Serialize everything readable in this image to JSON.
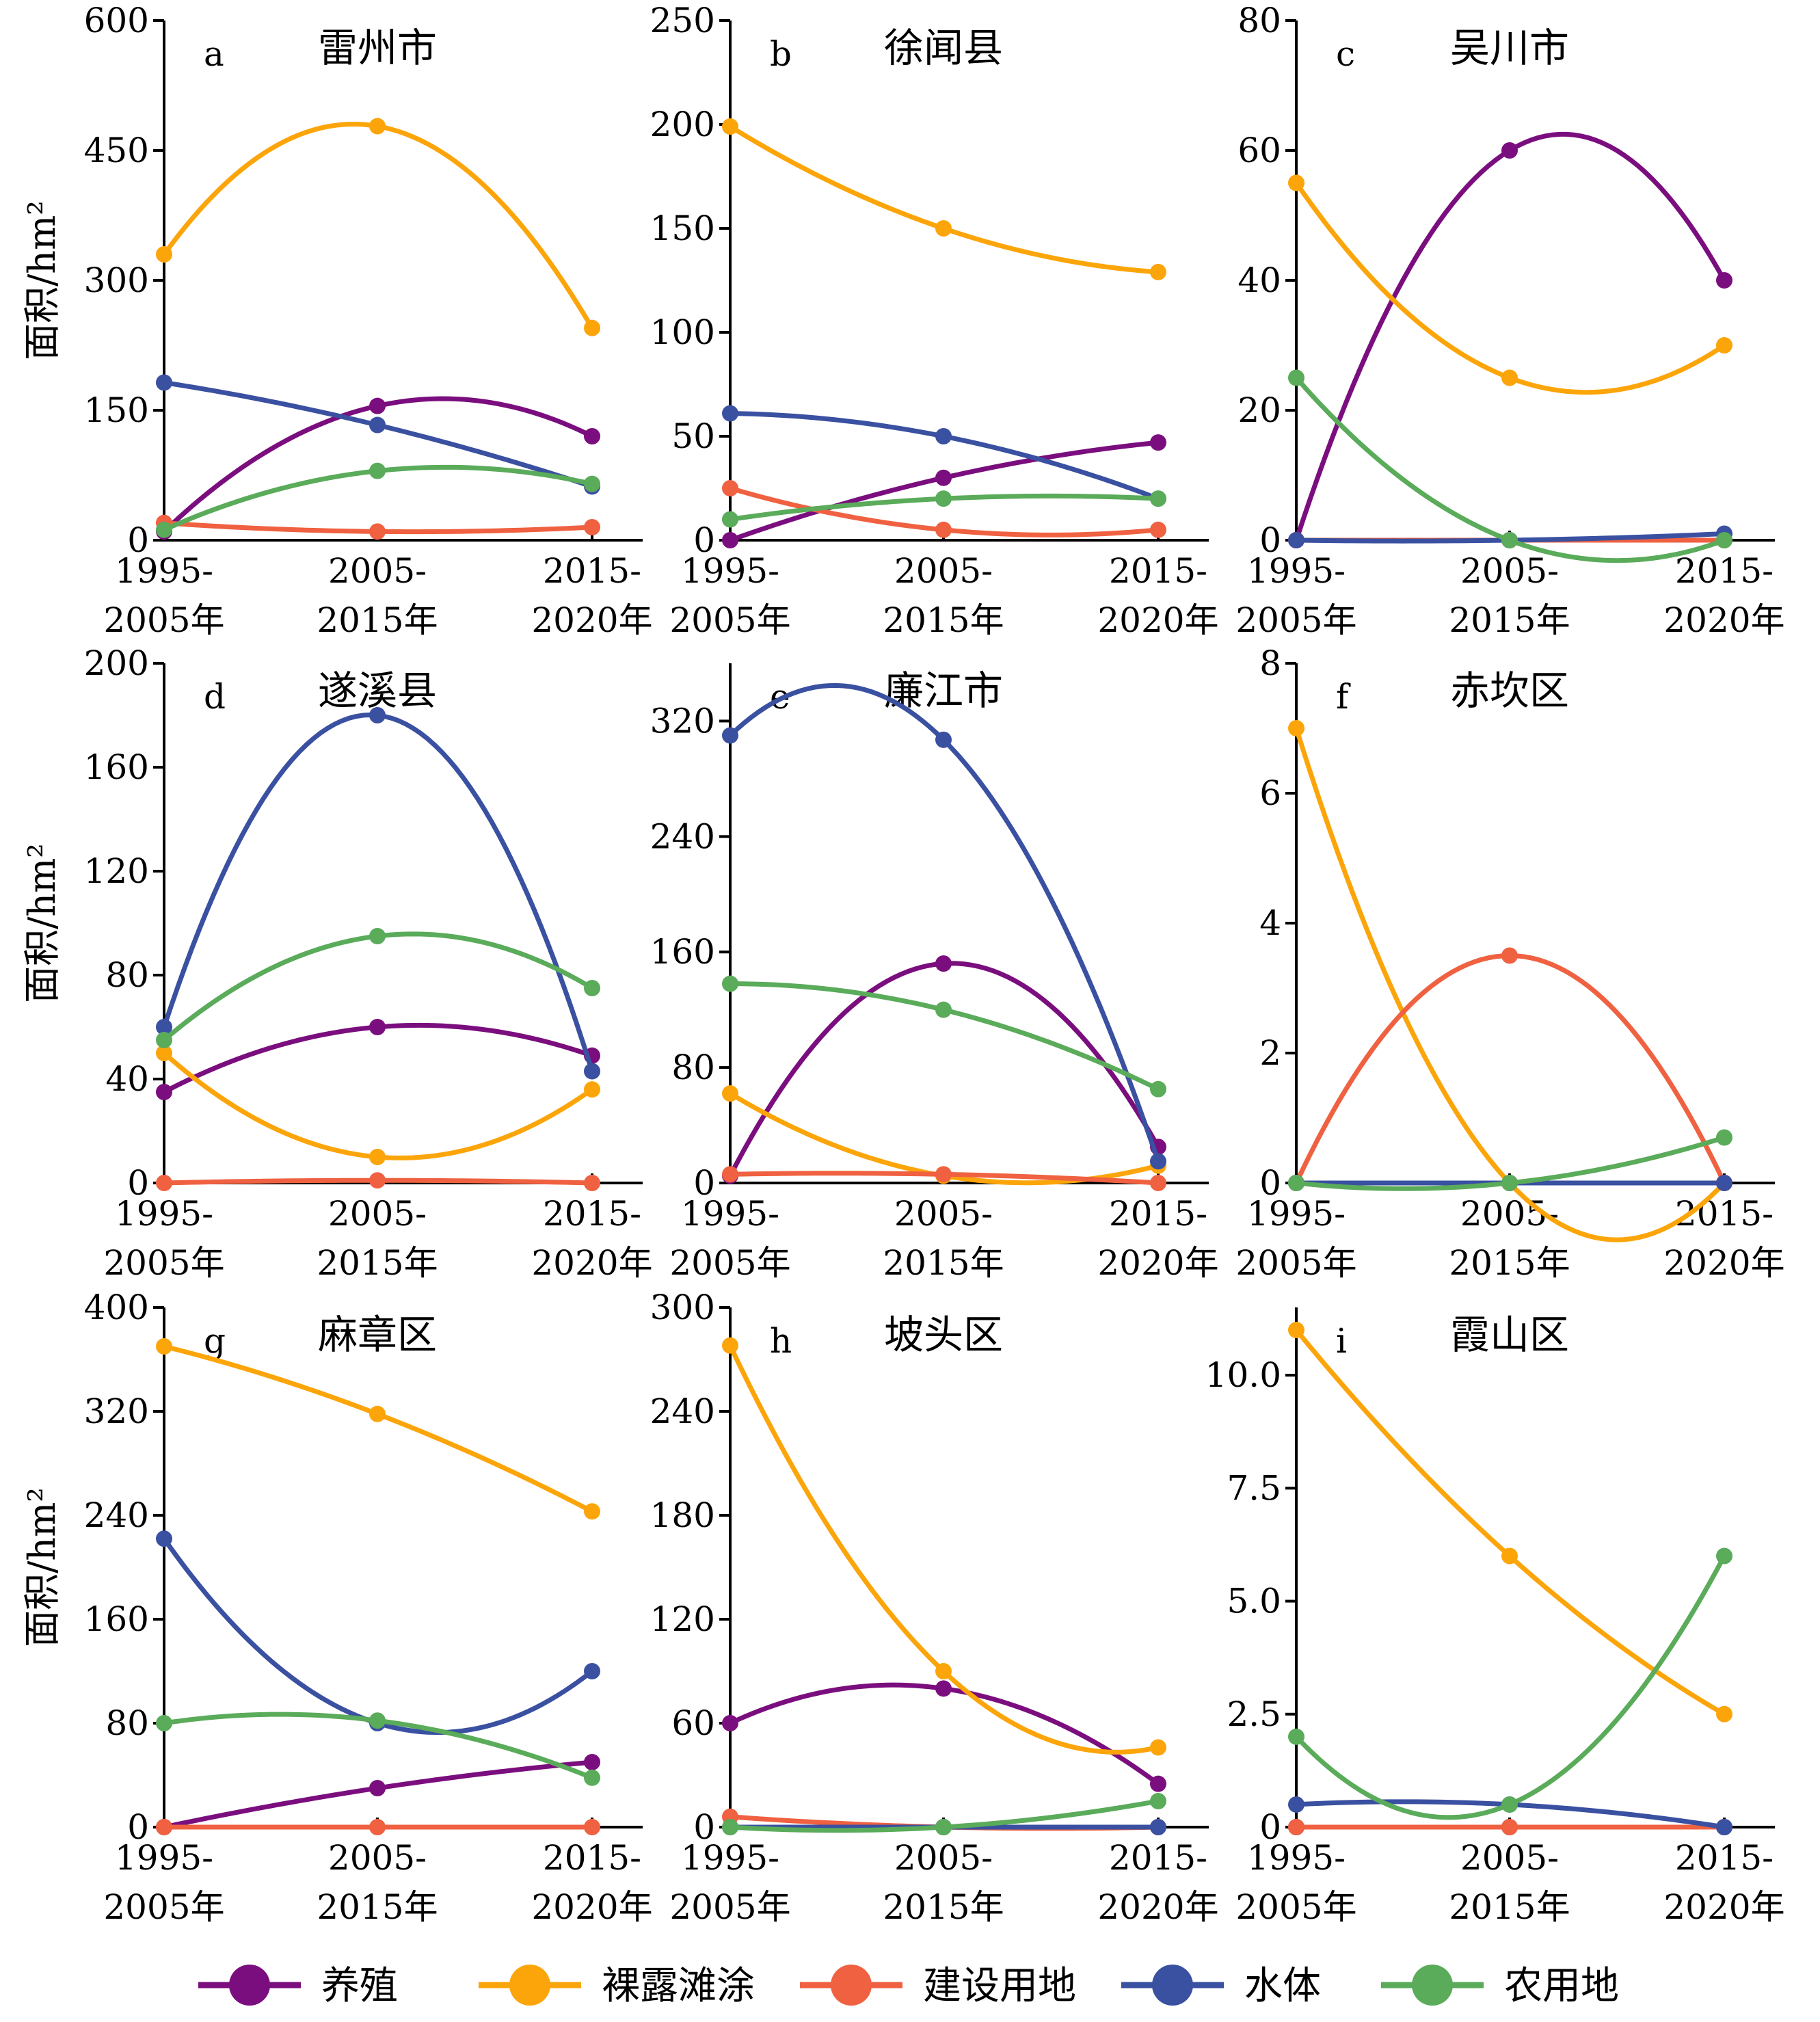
{
  "chart_data": {
    "type": "line",
    "layout": "3x3 small multiples",
    "ylabel": "面积/hm²",
    "categories": [
      "1995-\n2005年",
      "2005-\n2015年",
      "2015-\n2020年"
    ],
    "legend": {
      "placement": "bottom",
      "entries": [
        {
          "key": "aquaculture",
          "label": "养殖",
          "color": "#7b0e7e"
        },
        {
          "key": "bare",
          "label": "裸露滩涂",
          "color": "#fca50a"
        },
        {
          "key": "construction",
          "label": "建设用地",
          "color": "#ef6141"
        },
        {
          "key": "water",
          "label": "水体",
          "color": "#3a50a1"
        },
        {
          "key": "farmland",
          "label": "农用地",
          "color": "#5aab5a"
        }
      ]
    },
    "panels": [
      {
        "letter": "a",
        "title": "雷州市",
        "ylim": [
          0,
          600
        ],
        "yticks": [
          "0",
          "150",
          "300",
          "450",
          "600"
        ],
        "series": {
          "aquaculture": [
            10,
            155,
            120
          ],
          "bare": [
            330,
            478,
            245
          ],
          "construction": [
            20,
            10,
            15
          ],
          "water": [
            182,
            133,
            62
          ],
          "farmland": [
            12,
            80,
            65
          ]
        }
      },
      {
        "letter": "b",
        "title": "徐闻县",
        "ylim": [
          0,
          250
        ],
        "yticks": [
          "0",
          "50",
          "100",
          "150",
          "200",
          "250"
        ],
        "series": {
          "aquaculture": [
            0,
            30,
            47
          ],
          "bare": [
            199,
            150,
            129
          ],
          "construction": [
            25,
            5,
            5
          ],
          "water": [
            61,
            50,
            20
          ],
          "farmland": [
            10,
            20,
            20
          ]
        }
      },
      {
        "letter": "c",
        "title": "吴川市",
        "ylim": [
          0,
          80
        ],
        "yticks": [
          "0",
          "20",
          "40",
          "60",
          "80"
        ],
        "series": {
          "aquaculture": [
            0,
            60,
            40
          ],
          "bare": [
            55,
            25,
            30
          ],
          "construction": [
            0,
            0,
            0
          ],
          "water": [
            0,
            0,
            1
          ],
          "farmland": [
            25,
            0,
            0
          ]
        }
      },
      {
        "letter": "d",
        "title": "遂溪县",
        "ylim": [
          0,
          200
        ],
        "yticks": [
          "0",
          "40",
          "80",
          "120",
          "160",
          "200"
        ],
        "series": {
          "aquaculture": [
            35,
            60,
            49
          ],
          "bare": [
            50,
            10,
            36
          ],
          "construction": [
            0,
            1,
            0
          ],
          "water": [
            60,
            180,
            43
          ],
          "farmland": [
            55,
            95,
            75
          ]
        }
      },
      {
        "letter": "e",
        "title": "廉江市",
        "ylim": [
          0,
          360
        ],
        "yticks": [
          "0",
          "80",
          "160",
          "240",
          "320"
        ],
        "series": {
          "aquaculture": [
            5,
            152,
            25
          ],
          "bare": [
            62,
            5,
            12
          ],
          "construction": [
            6,
            6,
            0
          ],
          "water": [
            310,
            307,
            15
          ],
          "farmland": [
            138,
            120,
            65
          ]
        }
      },
      {
        "letter": "f",
        "title": "赤坎区",
        "ylim": [
          0,
          8
        ],
        "yticks": [
          "0",
          "2",
          "4",
          "6",
          "8"
        ],
        "series": {
          "aquaculture": [
            0,
            0,
            0
          ],
          "bare": [
            7,
            0,
            0
          ],
          "construction": [
            0,
            3.5,
            0
          ],
          "water": [
            0,
            0,
            0
          ],
          "farmland": [
            0,
            0,
            0.7
          ]
        }
      },
      {
        "letter": "g",
        "title": "麻章区",
        "ylim": [
          0,
          400
        ],
        "yticks": [
          "0",
          "80",
          "160",
          "240",
          "320",
          "400"
        ],
        "series": {
          "aquaculture": [
            0,
            30,
            50
          ],
          "bare": [
            370,
            318,
            243
          ],
          "construction": [
            0,
            0,
            0
          ],
          "water": [
            222,
            80,
            120
          ],
          "farmland": [
            80,
            82,
            38
          ]
        }
      },
      {
        "letter": "h",
        "title": "坡头区",
        "ylim": [
          0,
          300
        ],
        "yticks": [
          "0",
          "60",
          "120",
          "180",
          "240",
          "300"
        ],
        "series": {
          "aquaculture": [
            60,
            80,
            25
          ],
          "bare": [
            278,
            90,
            46
          ],
          "construction": [
            6,
            0,
            0
          ],
          "water": [
            0,
            0,
            0
          ],
          "farmland": [
            0,
            0,
            15
          ]
        }
      },
      {
        "letter": "i",
        "title": "霞山区",
        "ylim": [
          0,
          11.5
        ],
        "yticks": [
          "0",
          "2.5",
          "5.0",
          "7.5",
          "10.0"
        ],
        "series": {
          "aquaculture": [
            0,
            0,
            0
          ],
          "bare": [
            11,
            6,
            2.5
          ],
          "construction": [
            0,
            0,
            0
          ],
          "water": [
            0.5,
            0.5,
            0
          ],
          "farmland": [
            2,
            0.5,
            6
          ]
        }
      }
    ]
  }
}
